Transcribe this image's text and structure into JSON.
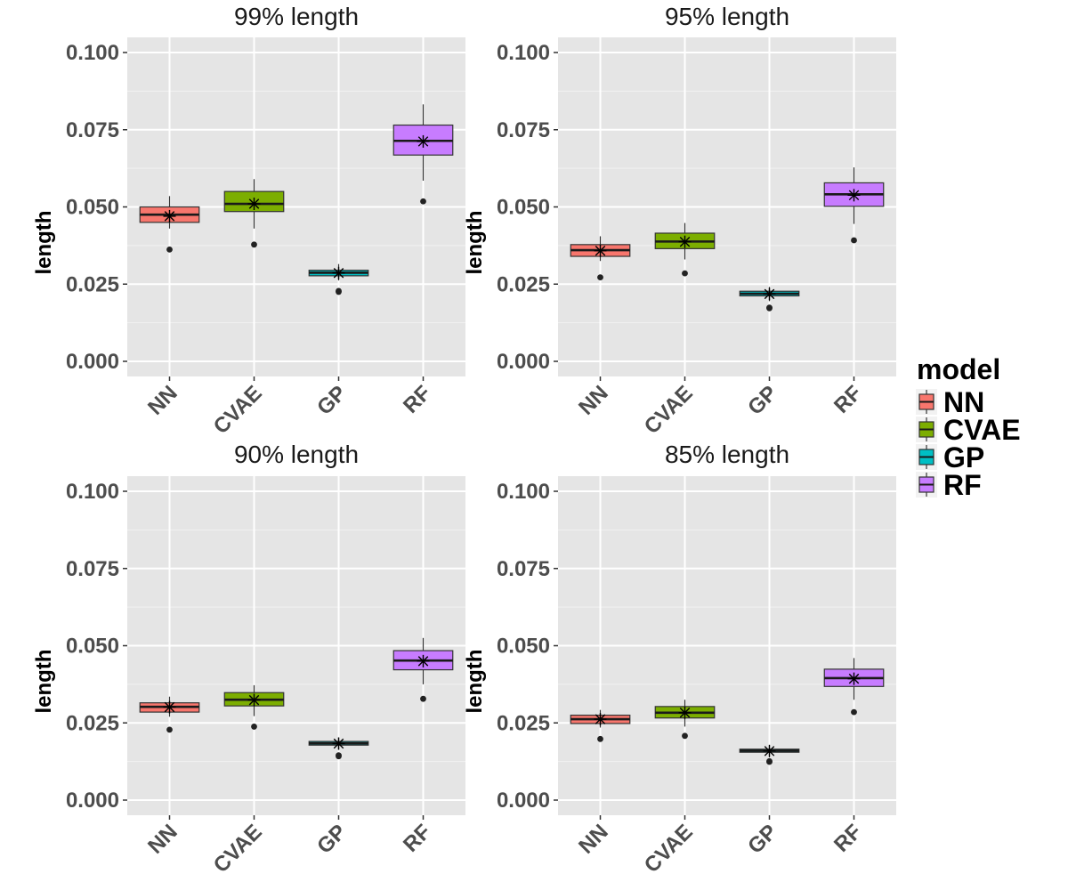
{
  "chart_data": {
    "type": "box",
    "categories": [
      "NN",
      "CVAE",
      "GP",
      "RF"
    ],
    "colors": {
      "NN": "#F8766D",
      "CVAE": "#7CAE00",
      "GP": "#00BFC4",
      "RF": "#C77CFF"
    },
    "ylabel": "length",
    "ylim": [
      0.0,
      0.1
    ],
    "yticks": [
      "0.000",
      "0.025",
      "0.050",
      "0.075",
      "0.100"
    ],
    "grid": true,
    "legend": {
      "title": "model",
      "position": "right",
      "items": [
        "NN",
        "CVAE",
        "GP",
        "RF"
      ]
    },
    "mean_marker": "asterisk",
    "panels": [
      {
        "title": "99% length",
        "boxes": [
          {
            "category": "NN",
            "whisker_low": 0.043,
            "q1": 0.045,
            "median": 0.0475,
            "q3": 0.05,
            "whisker_high": 0.0535,
            "mean": 0.047,
            "outliers": [
              0.0362
            ]
          },
          {
            "category": "CVAE",
            "whisker_low": 0.043,
            "q1": 0.0485,
            "median": 0.051,
            "q3": 0.055,
            "whisker_high": 0.059,
            "mean": 0.051,
            "outliers": [
              0.0378
            ]
          },
          {
            "category": "GP",
            "whisker_low": 0.0262,
            "q1": 0.0277,
            "median": 0.0287,
            "q3": 0.0295,
            "whisker_high": 0.0315,
            "mean": 0.0286,
            "outliers": [
              0.0225,
              0.0228
            ]
          },
          {
            "category": "RF",
            "whisker_low": 0.0585,
            "q1": 0.0668,
            "median": 0.0714,
            "q3": 0.0765,
            "whisker_high": 0.0832,
            "mean": 0.0712,
            "outliers": [
              0.0518
            ]
          }
        ]
      },
      {
        "title": "95% length",
        "boxes": [
          {
            "category": "NN",
            "whisker_low": 0.0325,
            "q1": 0.034,
            "median": 0.036,
            "q3": 0.0378,
            "whisker_high": 0.0405,
            "mean": 0.0358,
            "outliers": [
              0.0272
            ]
          },
          {
            "category": "CVAE",
            "whisker_low": 0.033,
            "q1": 0.0365,
            "median": 0.0388,
            "q3": 0.0415,
            "whisker_high": 0.0448,
            "mean": 0.0387,
            "outliers": [
              0.0285
            ]
          },
          {
            "category": "GP",
            "whisker_low": 0.0195,
            "q1": 0.0212,
            "median": 0.0219,
            "q3": 0.0227,
            "whisker_high": 0.0241,
            "mean": 0.0218,
            "outliers": [
              0.0172,
              0.0174
            ]
          },
          {
            "category": "RF",
            "whisker_low": 0.0445,
            "q1": 0.0502,
            "median": 0.0541,
            "q3": 0.0578,
            "whisker_high": 0.0628,
            "mean": 0.0538,
            "outliers": [
              0.0392
            ]
          }
        ]
      },
      {
        "title": "90% length",
        "boxes": [
          {
            "category": "NN",
            "whisker_low": 0.027,
            "q1": 0.0285,
            "median": 0.0302,
            "q3": 0.0315,
            "whisker_high": 0.0335,
            "mean": 0.0301,
            "outliers": [
              0.0228
            ]
          },
          {
            "category": "CVAE",
            "whisker_low": 0.0272,
            "q1": 0.0305,
            "median": 0.0325,
            "q3": 0.0348,
            "whisker_high": 0.0372,
            "mean": 0.0324,
            "outliers": [
              0.0238
            ]
          },
          {
            "category": "GP",
            "whisker_low": 0.0164,
            "q1": 0.0178,
            "median": 0.0184,
            "q3": 0.019,
            "whisker_high": 0.0202,
            "mean": 0.0183,
            "outliers": [
              0.0142,
              0.0145
            ]
          },
          {
            "category": "RF",
            "whisker_low": 0.0375,
            "q1": 0.0422,
            "median": 0.0452,
            "q3": 0.0484,
            "whisker_high": 0.0525,
            "mean": 0.045,
            "outliers": [
              0.0328
            ]
          }
        ]
      },
      {
        "title": "85% length",
        "boxes": [
          {
            "category": "NN",
            "whisker_low": 0.0235,
            "q1": 0.0248,
            "median": 0.0262,
            "q3": 0.0275,
            "whisker_high": 0.0292,
            "mean": 0.0262,
            "outliers": [
              0.0198
            ]
          },
          {
            "category": "CVAE",
            "whisker_low": 0.0238,
            "q1": 0.0266,
            "median": 0.0283,
            "q3": 0.0303,
            "whisker_high": 0.0325,
            "mean": 0.0283,
            "outliers": [
              0.0208
            ]
          },
          {
            "category": "GP",
            "whisker_low": 0.0143,
            "q1": 0.0155,
            "median": 0.016,
            "q3": 0.0165,
            "whisker_high": 0.0176,
            "mean": 0.0159,
            "outliers": [
              0.0124,
              0.0126
            ]
          },
          {
            "category": "RF",
            "whisker_low": 0.0325,
            "q1": 0.0368,
            "median": 0.0395,
            "q3": 0.0424,
            "whisker_high": 0.046,
            "mean": 0.0393,
            "outliers": [
              0.0285
            ]
          }
        ]
      }
    ]
  }
}
